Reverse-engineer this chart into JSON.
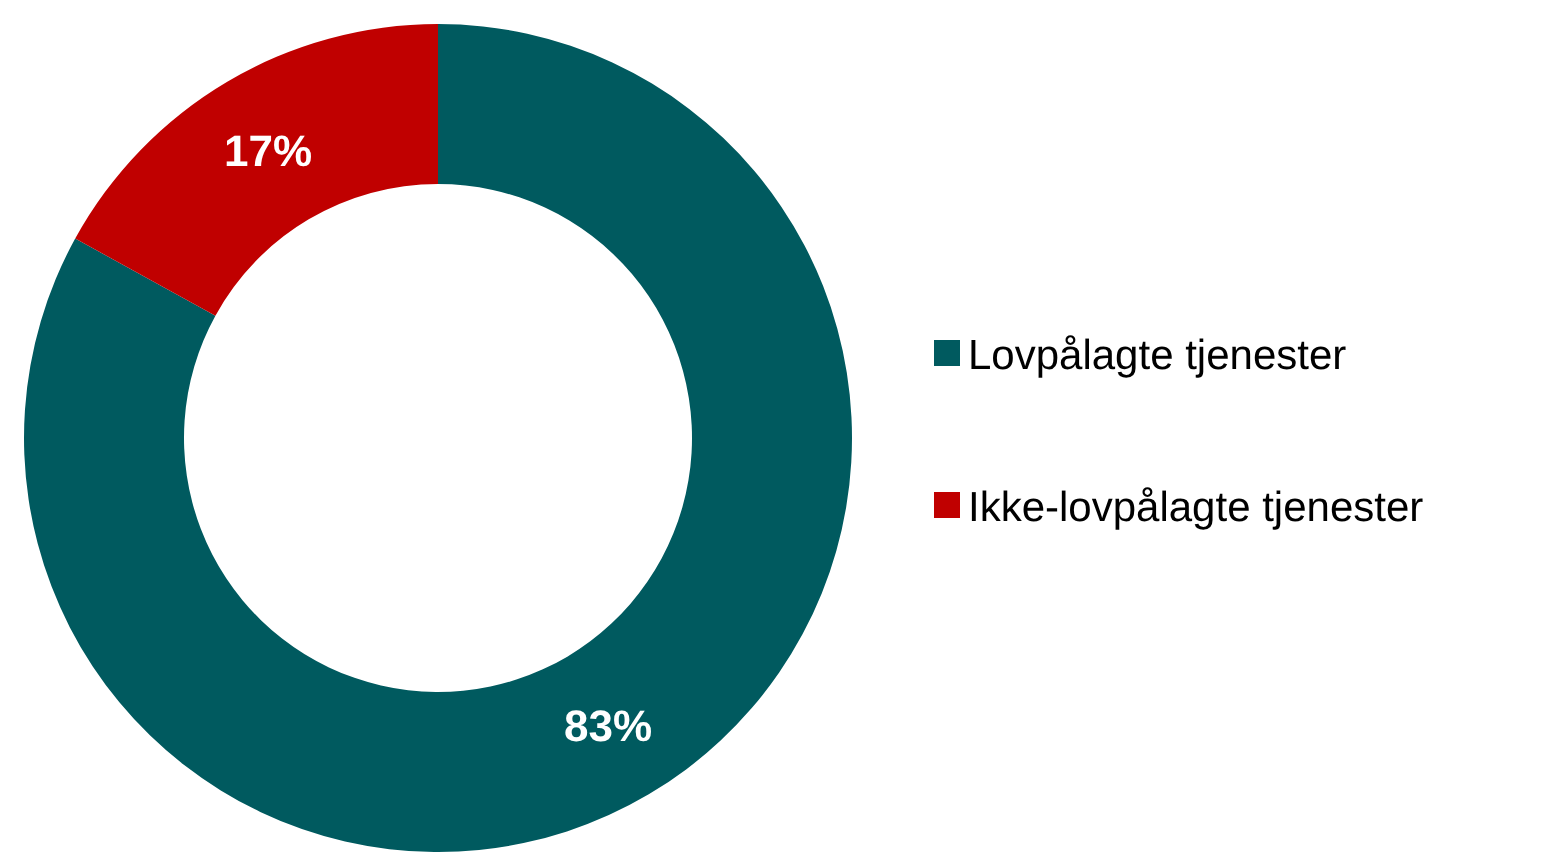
{
  "chart_data": {
    "type": "donut",
    "categories": [
      "Lovpålagte tjenester",
      "Ikke-lovpålagte tjenester"
    ],
    "values": [
      83,
      17
    ],
    "colors": [
      "#005a5f",
      "#c00000"
    ],
    "value_labels": [
      "83%",
      "17%"
    ],
    "legend": "right"
  }
}
